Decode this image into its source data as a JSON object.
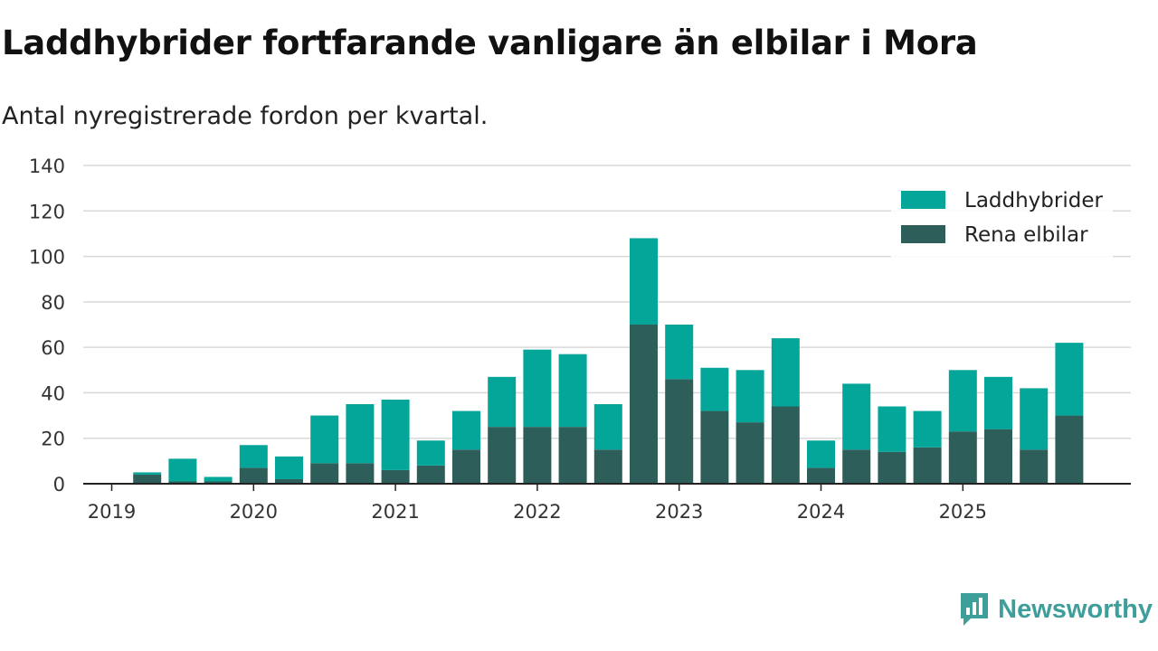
{
  "title": "Laddhybrider fortfarande vanligare än elbilar i Mora",
  "subtitle": "Antal nyregistrerade fordon per kvartal.",
  "brand": {
    "name": "Newsworthy",
    "icon": "newsworthy-logo-icon",
    "color": "#3d9e9a"
  },
  "colors": {
    "laddhybrider": "#05a69a",
    "rena_elbilar": "#2e5e59",
    "grid": "#d9d9d9",
    "axis": "#222222"
  },
  "chart_data": {
    "type": "bar",
    "stacked": true,
    "categories": [
      "2019 Q1",
      "2019 Q2",
      "2019 Q3",
      "2019 Q4",
      "2020 Q1",
      "2020 Q2",
      "2020 Q3",
      "2020 Q4",
      "2021 Q1",
      "2021 Q2",
      "2021 Q3",
      "2021 Q4",
      "2022 Q1",
      "2022 Q2",
      "2022 Q3",
      "2022 Q4",
      "2023 Q1",
      "2023 Q2",
      "2023 Q3",
      "2023 Q4",
      "2024 Q1",
      "2024 Q2",
      "2024 Q3",
      "2024 Q4",
      "2025 Q1",
      "2025 Q2",
      "2025 Q3",
      "2025 Q4"
    ],
    "series": [
      {
        "name": "Rena elbilar",
        "color": "#2e5e59",
        "values": [
          0,
          4,
          1,
          1,
          7,
          2,
          9,
          9,
          6,
          8,
          15,
          25,
          25,
          25,
          15,
          70,
          46,
          32,
          27,
          34,
          7,
          15,
          14,
          16,
          23,
          24,
          15,
          30
        ]
      },
      {
        "name": "Laddhybrider",
        "color": "#05a69a",
        "values": [
          0,
          1,
          10,
          2,
          10,
          10,
          21,
          26,
          31,
          11,
          17,
          22,
          34,
          32,
          20,
          38,
          24,
          19,
          23,
          30,
          12,
          29,
          20,
          16,
          27,
          23,
          27,
          32
        ]
      }
    ],
    "legend": [
      "Laddhybrider",
      "Rena elbilar"
    ],
    "legend_position": "top-right",
    "x_tick_labels": [
      "2019",
      "2020",
      "2021",
      "2022",
      "2023",
      "2024",
      "2025"
    ],
    "y_ticks": [
      0,
      20,
      40,
      60,
      80,
      100,
      120,
      140
    ],
    "ylim": [
      0,
      140
    ],
    "grid": true,
    "xlabel": "",
    "ylabel": ""
  }
}
